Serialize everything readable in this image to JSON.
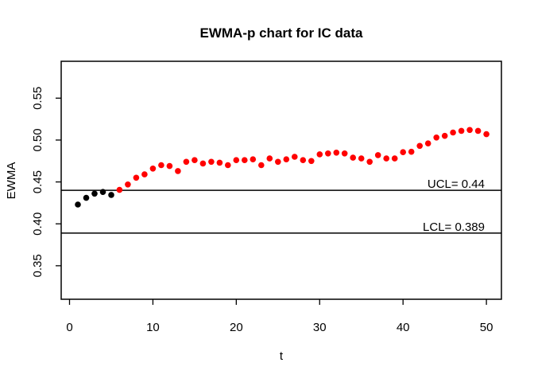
{
  "window": {
    "background": "#ffffff"
  },
  "chart_data": {
    "type": "scatter",
    "title": "EWMA-p chart for IC data",
    "xlabel": "t",
    "ylabel": "EWMA",
    "x": [
      1,
      2,
      3,
      4,
      5,
      6,
      7,
      8,
      9,
      10,
      11,
      12,
      13,
      14,
      15,
      16,
      17,
      18,
      19,
      20,
      21,
      22,
      23,
      24,
      25,
      26,
      27,
      28,
      29,
      30,
      31,
      32,
      33,
      34,
      35,
      36,
      37,
      38,
      39,
      40,
      41,
      42,
      43,
      44,
      45,
      46,
      47,
      48,
      49,
      50
    ],
    "y": [
      0.423,
      0.431,
      0.436,
      0.438,
      0.4345,
      0.4405,
      0.447,
      0.455,
      0.459,
      0.466,
      0.47,
      0.469,
      0.463,
      0.474,
      0.476,
      0.472,
      0.474,
      0.473,
      0.47,
      0.476,
      0.476,
      0.477,
      0.47,
      0.478,
      0.474,
      0.477,
      0.48,
      0.476,
      0.475,
      0.483,
      0.484,
      0.485,
      0.484,
      0.479,
      0.478,
      0.474,
      0.482,
      0.478,
      0.478,
      0.4855,
      0.486,
      0.493,
      0.496,
      0.503,
      0.505,
      0.509,
      0.511,
      0.512,
      0.511,
      0.507
    ],
    "series_note": "first in_control_count points drawn black, remainder red",
    "in_control_count": 5,
    "point_colors": {
      "in_control": "#000000",
      "shifted": "#ff0000"
    },
    "point_radius_px": 3.8,
    "control_limits": {
      "ucl": {
        "label": "UCL= 0.44",
        "value": 0.44
      },
      "lcl": {
        "label": "LCL= 0.389",
        "value": 0.389
      }
    },
    "xticks": {
      "values": [
        0,
        10,
        20,
        30,
        40,
        50
      ],
      "labels": [
        "0",
        "10",
        "20",
        "30",
        "40",
        "50"
      ]
    },
    "yticks": {
      "values": [
        0.35,
        0.4,
        0.45,
        0.5,
        0.55
      ],
      "labels": [
        "0.35",
        "0.40",
        "0.45",
        "0.50",
        "0.55"
      ]
    },
    "xlim": [
      -1.0,
      51.8
    ],
    "ylim": [
      0.31,
      0.594
    ],
    "grid": false,
    "legend": null,
    "frame_color": "#000000",
    "line_color": "#000000"
  }
}
